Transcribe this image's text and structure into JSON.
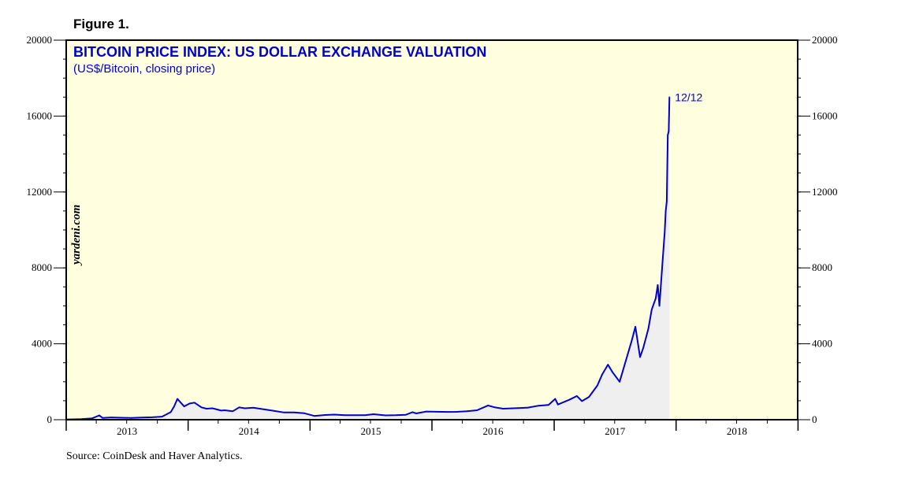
{
  "figure_label": "Figure 1.",
  "source": "Source: CoinDesk and Haver Analytics.",
  "watermark": "yardeni.com",
  "colors": {
    "plot_background": "#ffffe0",
    "line": "#0000cc",
    "area_fill": "#efefef",
    "title": "#0000cc"
  },
  "chart_data": {
    "type": "line",
    "title": "BITCOIN PRICE INDEX: US DOLLAR EXCHANGE VALUATION",
    "subtitle": "(US$/Bitcoin, closing price)",
    "xlabel": "",
    "ylabel": "",
    "x_ticks": [
      "2013",
      "2014",
      "2015",
      "2016",
      "2017",
      "2018"
    ],
    "y_ticks": [
      "0",
      "4000",
      "8000",
      "12000",
      "16000",
      "20000"
    ],
    "xlim": [
      "2013-01-01",
      "2018-12-31"
    ],
    "ylim": [
      0,
      20000
    ],
    "grid": false,
    "shaded_area_under_line": true,
    "annotation": {
      "text": "12/12",
      "x": "2017-12-12",
      "y": 17000
    },
    "series": [
      {
        "x": [
          "2013-01-01",
          "2013-02-15",
          "2013-03-20",
          "2013-04-10",
          "2013-04-20",
          "2013-05-15",
          "2013-06-15",
          "2013-07-15",
          "2013-08-15",
          "2013-09-15",
          "2013-10-15",
          "2013-11-10",
          "2013-11-20",
          "2013-11-30",
          "2013-12-10",
          "2013-12-20",
          "2014-01-05",
          "2014-01-20",
          "2014-02-10",
          "2014-02-25",
          "2014-03-15",
          "2014-04-10",
          "2014-04-20",
          "2014-05-15",
          "2014-06-03",
          "2014-06-20",
          "2014-07-15",
          "2014-08-15",
          "2014-09-15",
          "2014-10-15",
          "2014-11-15",
          "2014-12-15",
          "2015-01-14",
          "2015-02-15",
          "2015-03-15",
          "2015-04-15",
          "2015-05-15",
          "2015-06-15",
          "2015-07-10",
          "2015-08-15",
          "2015-09-15",
          "2015-10-15",
          "2015-11-04",
          "2015-11-15",
          "2015-12-15",
          "2016-01-15",
          "2016-02-15",
          "2016-03-15",
          "2016-04-15",
          "2016-05-15",
          "2016-06-17",
          "2016-07-05",
          "2016-08-01",
          "2016-09-15",
          "2016-10-15",
          "2016-11-15",
          "2016-12-15",
          "2017-01-04",
          "2017-01-12",
          "2017-02-15",
          "2017-03-10",
          "2017-03-25",
          "2017-04-15",
          "2017-05-10",
          "2017-05-25",
          "2017-06-11",
          "2017-06-25",
          "2017-07-16",
          "2017-08-05",
          "2017-08-20",
          "2017-09-01",
          "2017-09-15",
          "2017-09-25",
          "2017-10-10",
          "2017-10-20",
          "2017-11-01",
          "2017-11-07",
          "2017-11-12",
          "2017-11-20",
          "2017-11-28",
          "2017-12-01",
          "2017-12-04",
          "2017-12-07",
          "2017-12-10",
          "2017-12-12"
        ],
        "values": [
          13,
          30,
          75,
          230,
          90,
          120,
          105,
          90,
          110,
          130,
          160,
          400,
          700,
          1100,
          900,
          700,
          850,
          900,
          650,
          580,
          600,
          480,
          500,
          450,
          650,
          600,
          630,
          550,
          470,
          380,
          380,
          340,
          200,
          250,
          270,
          235,
          240,
          240,
          290,
          230,
          235,
          260,
          400,
          330,
          430,
          420,
          410,
          415,
          450,
          500,
          750,
          660,
          580,
          610,
          640,
          740,
          780,
          1100,
          800,
          1050,
          1250,
          980,
          1200,
          1800,
          2400,
          2900,
          2500,
          2000,
          3200,
          4100,
          4900,
          3300,
          3800,
          4800,
          5800,
          6400,
          7100,
          6000,
          8000,
          9900,
          11000,
          11500,
          15000,
          15200,
          17000
        ]
      }
    ]
  }
}
